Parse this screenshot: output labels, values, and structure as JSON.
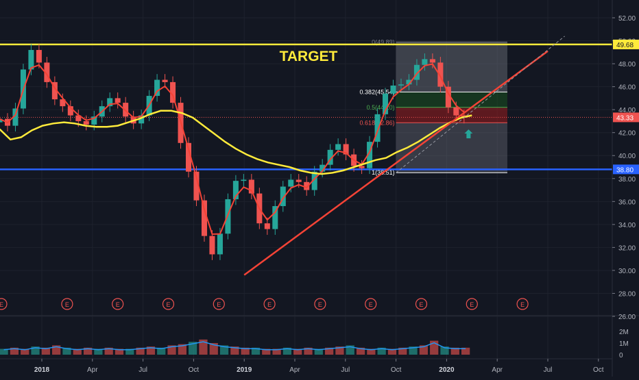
{
  "chart_data": {
    "type": "candlestick",
    "x_ticks": [
      "2018",
      "Apr",
      "Jul",
      "Oct",
      "2019",
      "Apr",
      "Jul",
      "Oct",
      "2020",
      "Apr",
      "Jul",
      "Oct"
    ],
    "y_ticks": [
      "52.00",
      "50.00",
      "48.00",
      "46.00",
      "44.00",
      "42.00",
      "40.00",
      "38.00",
      "36.00",
      "34.00",
      "32.00",
      "30.00",
      "28.00",
      "26.00"
    ],
    "y_ticks_values": [
      52,
      50,
      48,
      46,
      44,
      42,
      40,
      38,
      36,
      34,
      32,
      30,
      28,
      26
    ],
    "ylim": [
      26,
      53.1
    ],
    "price_labels": [
      {
        "text": "49.68",
        "value": 49.68,
        "color": "#ffeb3b"
      },
      {
        "text": "43.33",
        "value": 43.33,
        "color": "#ef5350"
      },
      {
        "text": "38.80",
        "value": 38.8,
        "color": "#2962ff"
      }
    ],
    "horizontal_lines": [
      {
        "value": 49.68,
        "color": "#ffeb3b"
      },
      {
        "value": 38.8,
        "color": "#2962ff"
      }
    ],
    "annotation_target": "TARGET",
    "fib_levels": [
      {
        "label": "0(49.89)",
        "value": 49.89
      },
      {
        "label": "0.382(45.54)",
        "value": 45.54
      },
      {
        "label": "0.5(44.20)",
        "value": 44.2
      },
      {
        "label": "0.618(42.86)",
        "value": 42.86
      },
      {
        "label": "1(38.51)",
        "value": 38.51
      }
    ],
    "trendline": {
      "start": [
        "2019-01-01",
        29.6
      ],
      "end": [
        "2020-07-01",
        49.1
      ],
      "color": "#f44336"
    },
    "earnings_markers": [
      "E",
      "E",
      "E",
      "E",
      "E",
      "E",
      "E",
      "E",
      "E",
      "E",
      "E"
    ],
    "volume_ticks": [
      "2M",
      "1M",
      "0"
    ],
    "volume_ticks_values": [
      2,
      1,
      0
    ],
    "close_prices": [
      43.2,
      42.6,
      44.1,
      47.5,
      49.2,
      48.1,
      46.4,
      44.9,
      44.3,
      43.5,
      43.0,
      42.7,
      43.4,
      44.3,
      45.0,
      44.6,
      43.4,
      42.8,
      43.5,
      45.2,
      46.6,
      46.4,
      44.6,
      41.1,
      38.6,
      36.1,
      33.0,
      31.4,
      33.2,
      36.2,
      37.8,
      37.9,
      36.7,
      34.1,
      33.6,
      35.6,
      37.3,
      37.9,
      37.7,
      37.0,
      38.6,
      39.2,
      40.5,
      41.0,
      40.1,
      39.1,
      38.9,
      41.2,
      43.6,
      45.4,
      46.1,
      46.2,
      46.6,
      47.9,
      48.4,
      48.1,
      46.0,
      44.2,
      43.5,
      43.3
    ],
    "ma_values": [
      42.3,
      41.4,
      41.6,
      42.2,
      42.6,
      42.8,
      42.9,
      42.8,
      42.6,
      42.5,
      42.5,
      42.6,
      42.9,
      43.2,
      43.6,
      43.9,
      43.9,
      43.7,
      43.3,
      42.6,
      41.9,
      41.2,
      40.6,
      40.1,
      39.7,
      39.4,
      39.2,
      39.0,
      38.7,
      38.5,
      38.4,
      38.5,
      38.7,
      39.0,
      39.3,
      39.6,
      39.8,
      40.3,
      40.7,
      41.2,
      41.8,
      42.4,
      42.9,
      43.3,
      43.5
    ],
    "volume_values": [
      0.5,
      0.6,
      0.5,
      0.7,
      0.6,
      0.8,
      0.6,
      0.5,
      0.6,
      0.5,
      0.6,
      0.5,
      0.5,
      0.6,
      0.7,
      0.6,
      0.8,
      0.9,
      1.1,
      1.3,
      1.0,
      0.8,
      0.7,
      0.6,
      0.6,
      0.5,
      0.5,
      0.6,
      0.5,
      0.6,
      0.5,
      0.6,
      0.7,
      0.8,
      0.6,
      0.5,
      0.6,
      0.5,
      0.6,
      0.7,
      0.8,
      1.2,
      0.7,
      0.6,
      0.6
    ],
    "colors": {
      "background": "#131722",
      "ma": "#ffeb3b",
      "ema": "#f44336",
      "up": "#26a69a",
      "down": "#ef5350",
      "volume_ma": "#2196f3",
      "fib_box": "#787b86"
    }
  }
}
